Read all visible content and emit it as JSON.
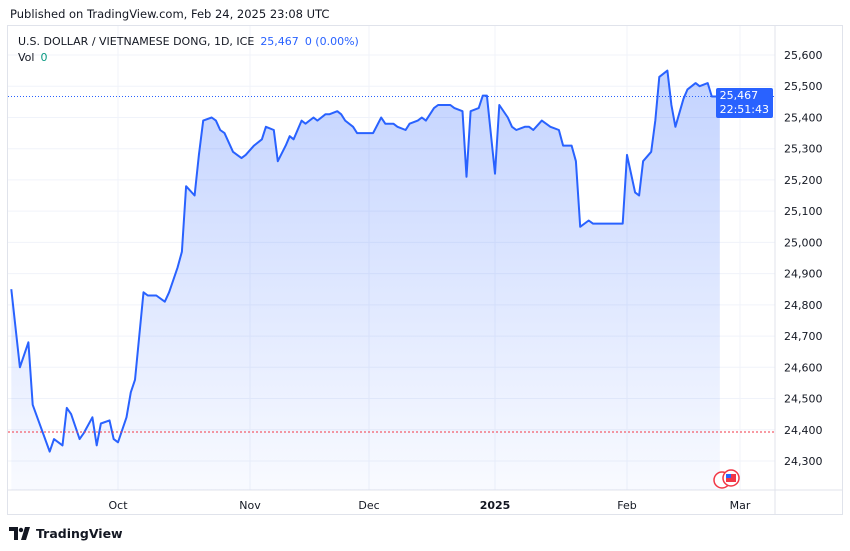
{
  "published": "Published on TradingView.com, Feb 24, 2025 23:08 UTC",
  "legend": {
    "symbol": "U.S. DOLLAR / VIETNAMESE DONG, 1D, ICE",
    "price": "25,467",
    "change": "0 (0.00%)",
    "vol_label": "Vol",
    "vol_value": "0"
  },
  "price_tag": {
    "price": "25,467",
    "countdown": "22:51:43"
  },
  "footer": {
    "brand": "TradingView"
  },
  "colors": {
    "line": "#2962ff",
    "fill": "#2962ff",
    "tag": "#2962ff",
    "ref_line": "#f23645"
  },
  "chart_data": {
    "type": "area",
    "y_ticks": [
      "25,600",
      "25,500",
      "25,400",
      "25,300",
      "25,200",
      "25,100",
      "25,000",
      "24,900",
      "24,800",
      "24,700",
      "24,600",
      "24,500",
      "24,400",
      "24,300"
    ],
    "x_ticks": [
      "Oct",
      "Nov",
      "Dec",
      "2025",
      "Feb",
      "Mar"
    ],
    "ylim": [
      24200,
      25650
    ],
    "grid": true,
    "last_value": 25467,
    "reference_line": 24393,
    "points": [
      [
        "2024-09-06",
        24850
      ],
      [
        "2024-09-08",
        24600
      ],
      [
        "2024-09-10",
        24680
      ],
      [
        "2024-09-11",
        24480
      ],
      [
        "2024-09-15",
        24330
      ],
      [
        "2024-09-16",
        24370
      ],
      [
        "2024-09-18",
        24350
      ],
      [
        "2024-09-19",
        24470
      ],
      [
        "2024-09-20",
        24450
      ],
      [
        "2024-09-22",
        24370
      ],
      [
        "2024-09-23",
        24390
      ],
      [
        "2024-09-25",
        24440
      ],
      [
        "2024-09-26",
        24350
      ],
      [
        "2024-09-27",
        24420
      ],
      [
        "2024-09-29",
        24430
      ],
      [
        "2024-09-30",
        24370
      ],
      [
        "2024-10-01",
        24360
      ],
      [
        "2024-10-03",
        24440
      ],
      [
        "2024-10-04",
        24520
      ],
      [
        "2024-10-05",
        24560
      ],
      [
        "2024-10-07",
        24840
      ],
      [
        "2024-10-08",
        24830
      ],
      [
        "2024-10-10",
        24830
      ],
      [
        "2024-10-12",
        24810
      ],
      [
        "2024-10-13",
        24840
      ],
      [
        "2024-10-15",
        24920
      ],
      [
        "2024-10-16",
        24970
      ],
      [
        "2024-10-17",
        25180
      ],
      [
        "2024-10-19",
        25150
      ],
      [
        "2024-10-20",
        25280
      ],
      [
        "2024-10-21",
        25390
      ],
      [
        "2024-10-23",
        25400
      ],
      [
        "2024-10-24",
        25390
      ],
      [
        "2024-10-25",
        25360
      ],
      [
        "2024-10-26",
        25350
      ],
      [
        "2024-10-28",
        25290
      ],
      [
        "2024-10-29",
        25280
      ],
      [
        "2024-10-30",
        25270
      ],
      [
        "2024-10-31",
        25280
      ],
      [
        "2024-11-02",
        25310
      ],
      [
        "2024-11-04",
        25330
      ],
      [
        "2024-11-05",
        25370
      ],
      [
        "2024-11-07",
        25360
      ],
      [
        "2024-11-08",
        25260
      ],
      [
        "2024-11-10",
        25310
      ],
      [
        "2024-11-11",
        25340
      ],
      [
        "2024-11-12",
        25330
      ],
      [
        "2024-11-14",
        25390
      ],
      [
        "2024-11-15",
        25380
      ],
      [
        "2024-11-17",
        25400
      ],
      [
        "2024-11-18",
        25390
      ],
      [
        "2024-11-20",
        25410
      ],
      [
        "2024-11-21",
        25410
      ],
      [
        "2024-11-23",
        25420
      ],
      [
        "2024-11-24",
        25410
      ],
      [
        "2024-11-25",
        25390
      ],
      [
        "2024-11-27",
        25370
      ],
      [
        "2024-11-28",
        25350
      ],
      [
        "2024-11-30",
        25350
      ],
      [
        "2024-12-02",
        25350
      ],
      [
        "2024-12-04",
        25400
      ],
      [
        "2024-12-05",
        25380
      ],
      [
        "2024-12-07",
        25380
      ],
      [
        "2024-12-08",
        25370
      ],
      [
        "2024-12-10",
        25360
      ],
      [
        "2024-12-11",
        25380
      ],
      [
        "2024-12-13",
        25390
      ],
      [
        "2024-12-14",
        25400
      ],
      [
        "2024-12-15",
        25390
      ],
      [
        "2024-12-17",
        25430
      ],
      [
        "2024-12-18",
        25440
      ],
      [
        "2024-12-20",
        25440
      ],
      [
        "2024-12-21",
        25440
      ],
      [
        "2024-12-22",
        25430
      ],
      [
        "2024-12-24",
        25420
      ],
      [
        "2024-12-25",
        25210
      ],
      [
        "2024-12-26",
        25420
      ],
      [
        "2024-12-28",
        25430
      ],
      [
        "2024-12-29",
        25470
      ],
      [
        "2024-12-30",
        25470
      ],
      [
        "2025-01-01",
        25220
      ],
      [
        "2025-01-02",
        25440
      ],
      [
        "2025-01-04",
        25400
      ],
      [
        "2025-01-05",
        25370
      ],
      [
        "2025-01-06",
        25360
      ],
      [
        "2025-01-08",
        25370
      ],
      [
        "2025-01-09",
        25370
      ],
      [
        "2025-01-10",
        25360
      ],
      [
        "2025-01-12",
        25390
      ],
      [
        "2025-01-13",
        25380
      ],
      [
        "2025-01-14",
        25370
      ],
      [
        "2025-01-16",
        25360
      ],
      [
        "2025-01-17",
        25310
      ],
      [
        "2025-01-19",
        25310
      ],
      [
        "2025-01-20",
        25260
      ],
      [
        "2025-01-21",
        25050
      ],
      [
        "2025-01-23",
        25070
      ],
      [
        "2025-01-24",
        25060
      ],
      [
        "2025-01-25",
        25060
      ],
      [
        "2025-01-27",
        25060
      ],
      [
        "2025-01-28",
        25060
      ],
      [
        "2025-01-29",
        25060
      ],
      [
        "2025-01-31",
        25060
      ],
      [
        "2025-02-01",
        25280
      ],
      [
        "2025-02-03",
        25160
      ],
      [
        "2025-02-04",
        25150
      ],
      [
        "2025-02-05",
        25260
      ],
      [
        "2025-02-07",
        25290
      ],
      [
        "2025-02-08",
        25390
      ],
      [
        "2025-02-09",
        25530
      ],
      [
        "2025-02-11",
        25550
      ],
      [
        "2025-02-12",
        25440
      ],
      [
        "2025-02-13",
        25370
      ],
      [
        "2025-02-15",
        25460
      ],
      [
        "2025-02-16",
        25490
      ],
      [
        "2025-02-18",
        25510
      ],
      [
        "2025-02-19",
        25500
      ],
      [
        "2025-02-21",
        25510
      ],
      [
        "2025-02-22",
        25467
      ],
      [
        "2025-02-24",
        25467
      ]
    ]
  }
}
